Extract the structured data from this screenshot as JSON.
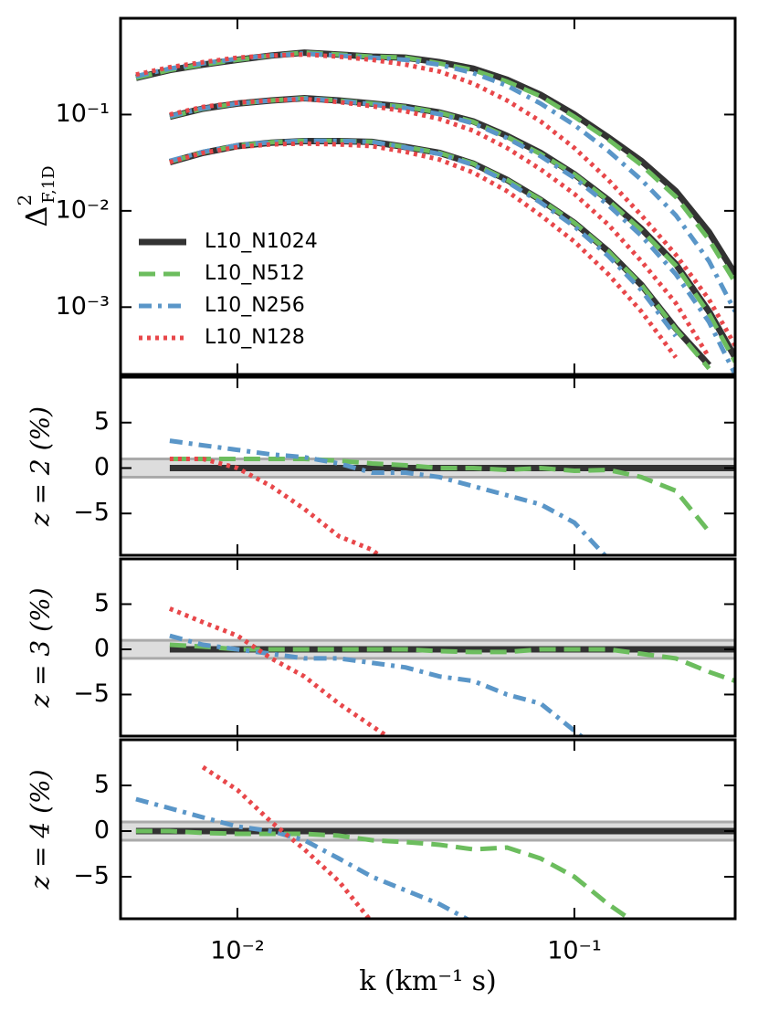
{
  "chart_data": [
    {
      "type": "line",
      "xlog": true,
      "ylog": true,
      "ylabel": {
        "base": "Δ",
        "sup": "2",
        "sub": "F,1D"
      },
      "x": [
        0.005,
        0.0063,
        0.0079,
        0.01,
        0.0126,
        0.0158,
        0.02,
        0.0251,
        0.0316,
        0.0398,
        0.0501,
        0.0631,
        0.0794,
        0.1,
        0.126,
        0.158,
        0.2,
        0.251,
        0.3
      ],
      "xlim": [
        0.0045,
        0.3
      ],
      "xticks": [
        0.01,
        0.1
      ],
      "ylim": [
        0.0002,
        1
      ],
      "yticks": [
        {
          "value": 0.1,
          "label": "10⁻¹"
        },
        {
          "value": 0.01,
          "label": "10⁻²"
        },
        {
          "value": 0.001,
          "label": "10⁻³"
        }
      ],
      "legend": "lower left",
      "series": [
        {
          "name": "L10_N1024",
          "color": "#333333",
          "style": "solid",
          "values": [
            [
              null,
              0.032,
              0.04,
              0.047,
              0.051,
              0.053,
              0.053,
              0.052,
              0.046,
              0.04,
              0.031,
              0.021,
              0.013,
              0.0075,
              0.0038,
              0.0017,
              0.0006,
              0.00025,
              null
            ],
            [
              null,
              0.095,
              0.115,
              0.13,
              0.14,
              0.148,
              0.14,
              0.13,
              0.12,
              0.105,
              0.085,
              0.06,
              0.04,
              0.024,
              0.013,
              0.0065,
              0.0028,
              0.0009,
              0.0003
            ],
            [
              0.24,
              0.29,
              0.33,
              0.37,
              0.41,
              0.44,
              0.42,
              0.4,
              0.39,
              0.35,
              0.3,
              0.23,
              0.16,
              0.1,
              0.058,
              0.033,
              0.016,
              0.006,
              0.0022
            ]
          ]
        },
        {
          "name": "L10_N512",
          "color": "#6cbd5e",
          "style": "dashed",
          "values": [
            [
              null,
              0.0323,
              0.0404,
              0.0475,
              0.0515,
              0.0535,
              0.0533,
              0.0522,
              0.046,
              0.04,
              0.031,
              0.021,
              0.013,
              0.0075,
              0.0038,
              0.0017,
              0.00059,
              0.00023,
              null
            ],
            [
              null,
              0.095,
              0.115,
              0.13,
              0.14,
              0.148,
              0.14,
              0.13,
              0.12,
              0.105,
              0.084,
              0.059,
              0.039,
              0.024,
              0.0128,
              0.0063,
              0.0027,
              0.00085,
              0.00027
            ],
            [
              0.24,
              0.29,
              0.33,
              0.37,
              0.41,
              0.44,
              0.42,
              0.4,
              0.39,
              0.34,
              0.29,
              0.22,
              0.155,
              0.095,
              0.055,
              0.03,
              0.014,
              0.005,
              0.0018
            ]
          ]
        },
        {
          "name": "L10_N256",
          "color": "#5a96c8",
          "style": "dashdot",
          "values": [
            [
              null,
              0.033,
              0.041,
              0.048,
              0.0515,
              0.0535,
              0.0532,
              0.052,
              0.0455,
              0.039,
              0.03,
              0.02,
              0.0122,
              0.0069,
              0.0034,
              0.0015,
              0.0005,
              null,
              null
            ],
            [
              null,
              0.096,
              0.116,
              0.13,
              0.14,
              0.147,
              0.139,
              0.128,
              0.117,
              0.101,
              0.081,
              0.057,
              0.037,
              0.022,
              0.0115,
              0.0055,
              0.0022,
              0.0007,
              0.0002
            ],
            [
              0.25,
              0.3,
              0.34,
              0.38,
              0.41,
              0.43,
              0.41,
              0.39,
              0.37,
              0.33,
              0.27,
              0.2,
              0.13,
              0.078,
              0.042,
              0.021,
              0.009,
              0.003,
              0.0009
            ]
          ]
        },
        {
          "name": "L10_N128",
          "color": "#e8474a",
          "style": "dotted",
          "values": [
            [
              null,
              0.032,
              0.04,
              0.046,
              0.049,
              0.05,
              0.049,
              0.047,
              0.041,
              0.034,
              0.025,
              0.016,
              0.009,
              0.0048,
              0.0022,
              0.0009,
              0.0003,
              null,
              null
            ],
            [
              null,
              0.1,
              0.12,
              0.133,
              0.14,
              0.145,
              0.135,
              0.122,
              0.108,
              0.09,
              0.068,
              0.045,
              0.027,
              0.015,
              0.0072,
              0.003,
              0.0011,
              0.0003,
              null
            ],
            [
              0.26,
              0.31,
              0.35,
              0.39,
              0.41,
              0.42,
              0.4,
              0.37,
              0.33,
              0.28,
              0.21,
              0.14,
              0.085,
              0.045,
              0.021,
              0.009,
              0.0035,
              0.0012,
              0.0004
            ]
          ]
        }
      ]
    },
    {
      "type": "line",
      "xlog": true,
      "ylabel": "z = 2 (%)",
      "x": [
        0.005,
        0.0063,
        0.0079,
        0.01,
        0.0126,
        0.0158,
        0.02,
        0.0251,
        0.0316,
        0.0398,
        0.0501,
        0.0631,
        0.0794,
        0.1,
        0.126,
        0.158,
        0.2,
        0.251,
        0.3
      ],
      "xlim": [
        0.0045,
        0.3
      ],
      "xticks": [
        0.01,
        0.1
      ],
      "ylim": [
        -9.6,
        10
      ],
      "yticks": [
        5,
        0,
        {
          "value": -5,
          "label": "−5"
        }
      ],
      "band": [
        -1,
        1
      ],
      "series": [
        {
          "color": "#333333",
          "style": "solid",
          "values": [
            null,
            0,
            0,
            0,
            0,
            0,
            0,
            0,
            0,
            0,
            0,
            0,
            0,
            0,
            0,
            0,
            0,
            0,
            0
          ]
        },
        {
          "color": "#6cbd5e",
          "style": "dashed",
          "values": [
            null,
            1,
            1,
            1,
            1,
            1,
            0.8,
            0.5,
            0.3,
            0,
            0,
            -0.2,
            0,
            -0.3,
            -0.2,
            -1,
            -2.5,
            -7,
            null
          ]
        },
        {
          "color": "#5a96c8",
          "style": "dashdot",
          "values": [
            null,
            3,
            2.5,
            2,
            1.5,
            1.2,
            0.5,
            -0.5,
            -0.5,
            -1,
            -2,
            -3,
            -4,
            -6,
            -10,
            null,
            null,
            null,
            null
          ]
        },
        {
          "color": "#e8474a",
          "style": "dotted",
          "values": [
            null,
            1,
            1,
            0,
            -2,
            -4.5,
            -7.5,
            -9,
            -12,
            null,
            null,
            null,
            null,
            null,
            null,
            null,
            null,
            null,
            null
          ]
        }
      ]
    },
    {
      "type": "line",
      "xlog": true,
      "ylabel": "z = 3 (%)",
      "x": [
        0.005,
        0.0063,
        0.0079,
        0.01,
        0.0126,
        0.0158,
        0.02,
        0.0251,
        0.0316,
        0.0398,
        0.0501,
        0.0631,
        0.0794,
        0.1,
        0.126,
        0.158,
        0.2,
        0.251,
        0.3
      ],
      "xlim": [
        0.0045,
        0.3
      ],
      "xticks": [
        0.01,
        0.1
      ],
      "ylim": [
        -9.6,
        10
      ],
      "yticks": [
        5,
        0,
        {
          "value": -5,
          "label": "−5"
        }
      ],
      "band": [
        -1,
        1
      ],
      "series": [
        {
          "color": "#333333",
          "style": "solid",
          "values": [
            null,
            0,
            0,
            0,
            0,
            0,
            0,
            0,
            0,
            0,
            0,
            0,
            0,
            0,
            0,
            0,
            0,
            0,
            0
          ]
        },
        {
          "color": "#6cbd5e",
          "style": "dashed",
          "values": [
            null,
            0.5,
            0.3,
            0,
            0,
            0,
            0,
            0,
            0,
            -0.2,
            -0.3,
            -0.3,
            0,
            0,
            0,
            -0.5,
            -1,
            -2.5,
            -3.5
          ]
        },
        {
          "color": "#5a96c8",
          "style": "dashdot",
          "values": [
            null,
            1.5,
            0.5,
            0,
            -0.5,
            -1,
            -1,
            -1.5,
            -2,
            -3,
            -3.5,
            -5,
            -6,
            -9,
            -12,
            null,
            null,
            null,
            null
          ]
        },
        {
          "color": "#e8474a",
          "style": "dotted",
          "values": [
            null,
            4.5,
            3,
            1.5,
            -1,
            -3,
            -6,
            -8.5,
            -11,
            null,
            null,
            null,
            null,
            null,
            null,
            null,
            null,
            null,
            null
          ]
        }
      ]
    },
    {
      "type": "line",
      "xlog": true,
      "ylabel": "z = 4 (%)",
      "xlabel": "k  (km⁻¹ s)",
      "x": [
        0.005,
        0.0063,
        0.0079,
        0.01,
        0.0126,
        0.0158,
        0.02,
        0.0251,
        0.0316,
        0.0398,
        0.0501,
        0.0631,
        0.0794,
        0.1,
        0.126,
        0.158,
        0.2,
        0.251,
        0.3
      ],
      "xlim": [
        0.0045,
        0.3
      ],
      "xticks": [
        {
          "value": 0.01,
          "label": "10⁻²"
        },
        {
          "value": 0.1,
          "label": "10⁻¹"
        }
      ],
      "ylim": [
        -9.6,
        10
      ],
      "yticks": [
        5,
        0,
        {
          "value": -5,
          "label": "−5"
        }
      ],
      "band": [
        -1,
        1
      ],
      "series": [
        {
          "color": "#333333",
          "style": "solid",
          "values": [
            0,
            0,
            0,
            0,
            0,
            0,
            0,
            0,
            0,
            0,
            0,
            0,
            0,
            0,
            0,
            0,
            0,
            0,
            0
          ]
        },
        {
          "color": "#6cbd5e",
          "style": "dashed",
          "values": [
            0,
            0,
            -0.2,
            -0.3,
            -0.3,
            -0.3,
            -0.5,
            -1,
            -1.2,
            -1.5,
            -2,
            -1.8,
            -3,
            -5,
            -8,
            -10.5,
            null,
            null,
            null
          ]
        },
        {
          "color": "#5a96c8",
          "style": "dashdot",
          "values": [
            3.5,
            2.5,
            1.5,
            0.5,
            0,
            -1,
            -3,
            -5,
            -6.5,
            -8,
            -10,
            null,
            null,
            null,
            null,
            null,
            null,
            null,
            null
          ]
        },
        {
          "color": "#e8474a",
          "style": "dotted",
          "values": [
            null,
            null,
            7,
            4.5,
            1,
            -2,
            -5.5,
            -10,
            null,
            null,
            null,
            null,
            null,
            null,
            null,
            null,
            null,
            null,
            null
          ]
        }
      ]
    }
  ]
}
